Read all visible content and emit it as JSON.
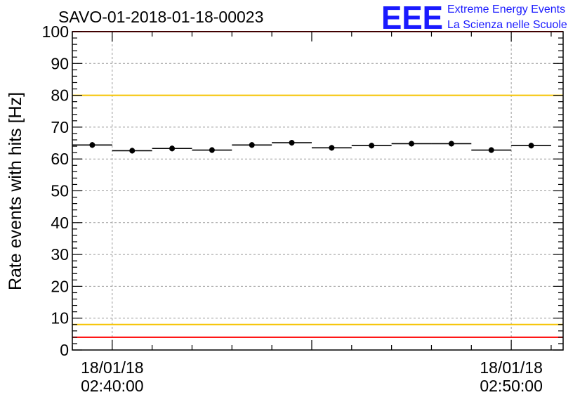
{
  "chart_data": {
    "type": "scatter",
    "title": "SAVO-01-2018-01-18-00023",
    "ylabel": "Rate events with hits [Hz]",
    "xlabel": "",
    "ylim": [
      0,
      100
    ],
    "xlim_minutes": [
      -1.0,
      11.3
    ],
    "y_ticks": [
      "0",
      "10",
      "20",
      "30",
      "40",
      "50",
      "60",
      "70",
      "80",
      "90",
      "100"
    ],
    "x_tick_labels": [
      {
        "minute": 0,
        "date": "18/01/18",
        "time": "02:40:00"
      },
      {
        "minute": 10,
        "date": "18/01/18",
        "time": "02:50:00"
      }
    ],
    "bin_width_minutes": 1.0,
    "x_centers_minutes": [
      -0.5,
      0.5,
      1.5,
      2.5,
      3.5,
      4.5,
      5.5,
      6.5,
      7.5,
      8.5,
      9.5,
      10.5
    ],
    "values": [
      64.4,
      62.6,
      63.3,
      62.8,
      64.4,
      65.1,
      63.5,
      64.2,
      64.8,
      64.8,
      62.8,
      64.2
    ],
    "errors": [
      0.9,
      0.9,
      0.9,
      0.9,
      0.9,
      0.9,
      0.9,
      0.9,
      0.9,
      0.9,
      0.9,
      0.9
    ],
    "reference_lines": [
      {
        "value": 100,
        "color": "#ff0000"
      },
      {
        "value": 80,
        "color": "#f5c400"
      },
      {
        "value": 8,
        "color": "#f5c400"
      },
      {
        "value": 4,
        "color": "#ff0000"
      }
    ],
    "grid": true
  },
  "logo": {
    "letters": "EEE",
    "line1": "Extreme Energy Events",
    "line2": "La Scienza nelle Scuole",
    "color": "#1a1aff"
  }
}
